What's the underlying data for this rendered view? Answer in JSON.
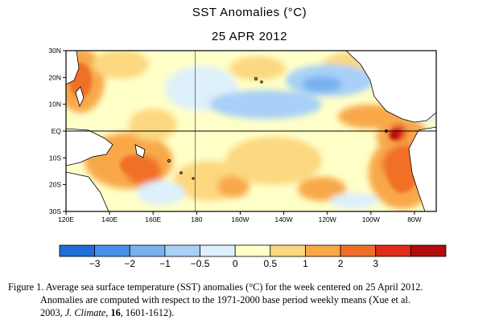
{
  "chart_data": {
    "type": "heatmap",
    "title": "SST Anomalies (°C)",
    "subtitle": "25 APR 2012",
    "x_ticks": [
      "120E",
      "140E",
      "160E",
      "180",
      "160W",
      "140W",
      "120W",
      "100W",
      "80W"
    ],
    "y_ticks": [
      "30N",
      "20N",
      "10N",
      "EQ",
      "10S",
      "20S",
      "30S"
    ],
    "x_range_deg_east": [
      120,
      290
    ],
    "y_range_deg": [
      -30,
      30
    ],
    "colorbar": {
      "tick_labels": [
        "−3",
        "−2",
        "−1",
        "−0.5",
        "0",
        "0.5",
        "1",
        "2",
        "3"
      ],
      "colors": [
        "#1e6ed6",
        "#4a90e8",
        "#78b0f0",
        "#a8d0f8",
        "#ddf0fc",
        "#ffffc8",
        "#fcd880",
        "#f8a848",
        "#f06f28",
        "#e02c18",
        "#b40c0c"
      ]
    },
    "colors": {
      "land": "#ffffff",
      "coast": "#000000",
      "equator_line": "#000000"
    }
  },
  "caption": {
    "line1": "Figure 1. Average sea surface temperature (SST) anomalies (°C) for the week centered on 25 April 2012.",
    "line2": "Anomalies are computed with respect to the 1971-2000 base period weekly means (Xue et al.",
    "line3_a": "2003, ",
    "line3_journal": "J. Climate",
    "line3_b": ", ",
    "line3_vol": "16",
    "line3_c": ", 1601-1612)."
  }
}
